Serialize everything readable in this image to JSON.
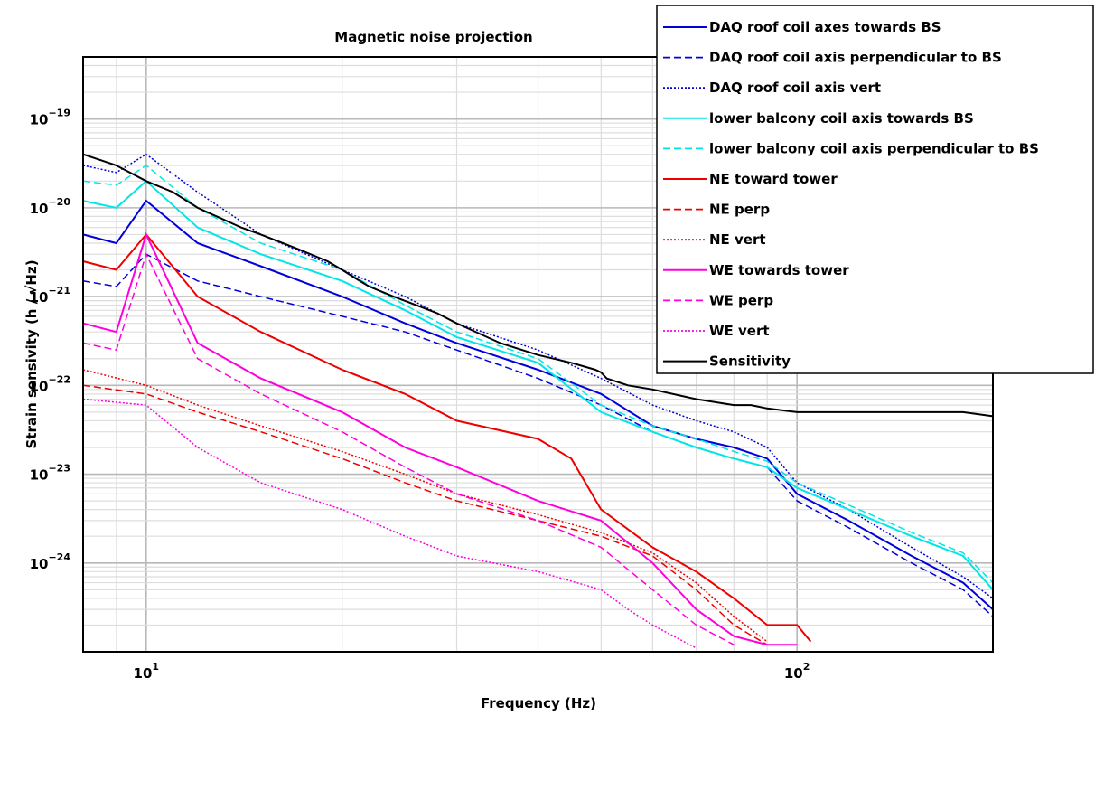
{
  "chart_data": {
    "type": "line",
    "title": "Magnetic noise projection",
    "xlabel": "Frequency (Hz)",
    "ylabel": "Strain sensivity (h / √Hz)",
    "x_scale": "log",
    "y_scale": "log",
    "xlim": [
      8,
      200
    ],
    "ylim": [
      1e-25,
      5e-19
    ],
    "grid": true,
    "legend_position": "top-right",
    "x_ticks": [
      {
        "value": 10,
        "label": "10",
        "exp": "1"
      },
      {
        "value": 100,
        "label": "10",
        "exp": "2"
      }
    ],
    "y_ticks": [
      {
        "value": 1e-19,
        "label": "10",
        "exp": "−19"
      },
      {
        "value": 1e-20,
        "label": "10",
        "exp": "−20"
      },
      {
        "value": 1e-21,
        "label": "10",
        "exp": "−21"
      },
      {
        "value": 1e-22,
        "label": "10",
        "exp": "−22"
      },
      {
        "value": 1e-23,
        "label": "10",
        "exp": "−23"
      },
      {
        "value": 1e-24,
        "label": "10",
        "exp": "−24"
      }
    ],
    "series": [
      {
        "name": "DAQ roof coil axes towards BS",
        "color": "#0000dd",
        "dash": "solid",
        "x": [
          8,
          9,
          10,
          12,
          15,
          20,
          25,
          30,
          40,
          50,
          60,
          70,
          80,
          90,
          100,
          120,
          150,
          180,
          200
        ],
        "y": [
          5e-21,
          4e-21,
          1.2e-20,
          4e-21,
          2.2e-21,
          1e-21,
          5e-22,
          3e-22,
          1.5e-22,
          8e-23,
          3.5e-23,
          2.5e-23,
          2e-23,
          1.5e-23,
          6e-24,
          3e-24,
          1.2e-24,
          6e-25,
          3e-25
        ]
      },
      {
        "name": "DAQ roof coil axis perpendicular to BS",
        "color": "#0000dd",
        "dash": "dashed",
        "x": [
          8,
          9,
          10,
          12,
          15,
          20,
          25,
          30,
          40,
          50,
          60,
          70,
          80,
          90,
          100,
          120,
          150,
          180,
          200
        ],
        "y": [
          1.5e-21,
          1.3e-21,
          3e-21,
          1.5e-21,
          1e-21,
          6e-22,
          4e-22,
          2.5e-22,
          1.2e-22,
          6e-23,
          3e-23,
          2e-23,
          1.5e-23,
          1.2e-23,
          5e-24,
          2.5e-24,
          1e-24,
          5e-25,
          2.5e-25
        ]
      },
      {
        "name": "DAQ roof coil axis vert",
        "color": "#0000dd",
        "dash": "dotted",
        "x": [
          8,
          9,
          10,
          12,
          15,
          20,
          25,
          30,
          40,
          50,
          60,
          70,
          80,
          90,
          100,
          120,
          150,
          180,
          200
        ],
        "y": [
          3e-20,
          2.5e-20,
          4e-20,
          1.5e-20,
          5e-21,
          2e-21,
          1e-21,
          5e-22,
          2.5e-22,
          1.2e-22,
          6e-23,
          4e-23,
          3e-23,
          2e-23,
          8e-24,
          4e-24,
          1.5e-24,
          7e-25,
          4e-25
        ]
      },
      {
        "name": "lower balcony coil axis towards BS",
        "color": "#00e6e6",
        "dash": "solid",
        "x": [
          8,
          9,
          10,
          12,
          15,
          20,
          25,
          30,
          40,
          50,
          60,
          70,
          80,
          90,
          100,
          120,
          150,
          180,
          200
        ],
        "y": [
          1.2e-20,
          1e-20,
          2e-20,
          6e-21,
          3e-21,
          1.5e-21,
          7e-22,
          3.5e-22,
          1.8e-22,
          5e-23,
          3e-23,
          2e-23,
          1.5e-23,
          1.2e-23,
          7e-24,
          4e-24,
          2e-24,
          1.2e-24,
          5e-25
        ]
      },
      {
        "name": "lower balcony coil axis perpendicular to BS",
        "color": "#00e6e6",
        "dash": "dashed",
        "x": [
          8,
          9,
          10,
          12,
          15,
          20,
          25,
          30,
          40,
          50,
          60,
          70,
          80,
          90,
          100,
          120,
          150,
          180,
          200
        ],
        "y": [
          2e-20,
          1.8e-20,
          3e-20,
          1e-20,
          4e-21,
          2e-21,
          8e-22,
          4e-22,
          2e-22,
          6e-23,
          3.5e-23,
          2.5e-23,
          1.8e-23,
          1.4e-23,
          8e-24,
          4.5e-24,
          2.2e-24,
          1.3e-24,
          6e-25
        ]
      },
      {
        "name": "NE toward tower",
        "color": "#ee0000",
        "dash": "solid",
        "x": [
          8,
          9,
          10,
          12,
          15,
          20,
          25,
          30,
          40,
          45,
          50,
          60,
          70,
          80,
          90,
          100,
          105
        ],
        "y": [
          2.5e-21,
          2e-21,
          5e-21,
          1e-21,
          4e-22,
          1.5e-22,
          8e-23,
          4e-23,
          2.5e-23,
          1.5e-23,
          4e-24,
          1.5e-24,
          8e-25,
          4e-25,
          2e-25,
          2e-25,
          1.3e-25
        ]
      },
      {
        "name": "NE perp",
        "color": "#ee0000",
        "dash": "dashed",
        "x": [
          8,
          10,
          12,
          15,
          20,
          25,
          30,
          40,
          50,
          60,
          70,
          80,
          90
        ],
        "y": [
          1e-22,
          8e-23,
          5e-23,
          3e-23,
          1.5e-23,
          8e-24,
          5e-24,
          3e-24,
          2e-24,
          1.2e-24,
          5e-25,
          2e-25,
          1.2e-25
        ]
      },
      {
        "name": "NE vert",
        "color": "#ee0000",
        "dash": "dotted",
        "x": [
          8,
          10,
          12,
          15,
          20,
          25,
          30,
          40,
          50,
          60,
          70,
          80,
          90
        ],
        "y": [
          1.5e-22,
          1e-22,
          6e-23,
          3.5e-23,
          1.8e-23,
          1e-23,
          6e-24,
          3.5e-24,
          2.2e-24,
          1.3e-24,
          6e-25,
          2.5e-25,
          1.3e-25
        ]
      },
      {
        "name": "WE towards tower",
        "color": "#ff00dd",
        "dash": "solid",
        "x": [
          8,
          9,
          10,
          12,
          15,
          20,
          25,
          30,
          40,
          50,
          60,
          70,
          80,
          90,
          100
        ],
        "y": [
          5e-22,
          4e-22,
          5e-21,
          3e-22,
          1.2e-22,
          5e-23,
          2e-23,
          1.2e-23,
          5e-24,
          3e-24,
          1e-24,
          3e-25,
          1.5e-25,
          1.2e-25,
          1.2e-25
        ]
      },
      {
        "name": "WE perp",
        "color": "#ff00dd",
        "dash": "dashed",
        "x": [
          8,
          9,
          10,
          12,
          15,
          20,
          25,
          30,
          40,
          50,
          60,
          70,
          80
        ],
        "y": [
          3e-22,
          2.5e-22,
          3e-21,
          2e-22,
          8e-23,
          3e-23,
          1.2e-23,
          6e-24,
          3e-24,
          1.5e-24,
          5e-25,
          2e-25,
          1.2e-25
        ]
      },
      {
        "name": "WE vert",
        "color": "#ff00dd",
        "dash": "dotted",
        "x": [
          8,
          10,
          12,
          15,
          20,
          25,
          30,
          40,
          50,
          55,
          60,
          70
        ],
        "y": [
          7e-23,
          6e-23,
          2e-23,
          8e-24,
          4e-24,
          2e-24,
          1.2e-24,
          8e-25,
          5e-25,
          3e-25,
          2e-25,
          1.1e-25
        ]
      },
      {
        "name": "Sensitivity",
        "color": "#000000",
        "dash": "solid",
        "x": [
          8,
          9,
          10,
          11,
          12,
          14,
          15,
          17,
          19,
          20,
          21,
          22,
          24,
          26,
          28,
          30,
          35,
          40,
          45,
          49,
          50,
          51,
          55,
          60,
          70,
          80,
          85,
          90,
          100,
          120,
          150,
          160,
          180,
          200
        ],
        "y": [
          4e-20,
          3e-20,
          2e-20,
          1.5e-20,
          1e-20,
          6e-21,
          5e-21,
          3.5e-21,
          2.5e-21,
          2e-21,
          1.6e-21,
          1.3e-21,
          1e-21,
          8e-22,
          6.5e-22,
          5e-22,
          3e-22,
          2.2e-22,
          1.8e-22,
          1.5e-22,
          1.4e-22,
          1.2e-22,
          1e-22,
          9e-23,
          7e-23,
          6e-23,
          6e-23,
          5.5e-23,
          5e-23,
          5e-23,
          5e-23,
          5e-23,
          5e-23,
          4.5e-23
        ]
      }
    ]
  }
}
